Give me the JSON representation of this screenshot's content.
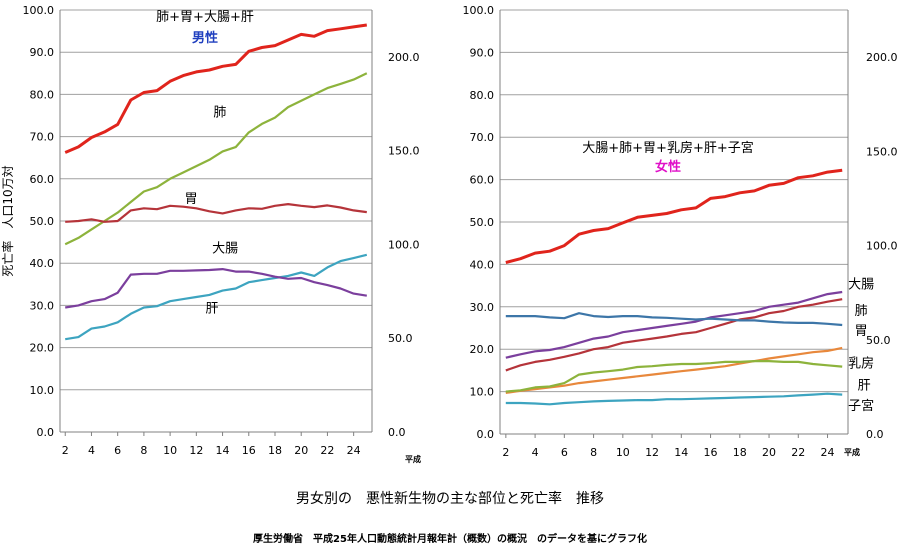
{
  "caption": "男女別の　悪性新生物の主な部位と死亡率　推移",
  "source": "厚生労働省　平成25年人口動態統計月報年計（概数）の概況　のデータを基にグラフ化",
  "chart_data": [
    {
      "type": "line",
      "title": "男性",
      "annotation": "肺+胃+大腸+肝",
      "ylabel": "死亡率　人口10万対",
      "xlabel": "平成",
      "x": [
        2,
        3,
        4,
        5,
        6,
        7,
        8,
        9,
        10,
        11,
        12,
        13,
        14,
        15,
        16,
        17,
        18,
        19,
        20,
        21,
        22,
        23,
        24,
        25
      ],
      "xticks": [
        "2",
        "4",
        "6",
        "8",
        "10",
        "12",
        "14",
        "16",
        "18",
        "20",
        "22",
        "24"
      ],
      "ylim": [
        0,
        100
      ],
      "yticks": [
        "0.0",
        "10.0",
        "20.0",
        "30.0",
        "40.0",
        "50.0",
        "60.0",
        "70.0",
        "80.0",
        "90.0",
        "100.0"
      ],
      "y2lim": [
        0,
        225
      ],
      "y2ticks": [
        "0.0",
        "50.0",
        "100.0",
        "150.0",
        "200.0"
      ],
      "grid": true,
      "series": [
        {
          "name": "肺+胃+大腸+肝",
          "axis": "right",
          "color": "#e0241c",
          "values": [
            149,
            152,
            157,
            160,
            164,
            177,
            181,
            182,
            187,
            190,
            192,
            193,
            195,
            196,
            203,
            205,
            206,
            209,
            212,
            211,
            214,
            215,
            216,
            217
          ]
        },
        {
          "name": "肺",
          "axis": "left",
          "color": "#8db33c",
          "values": [
            44.5,
            46.0,
            48.0,
            50.0,
            52.0,
            54.5,
            57.0,
            58.0,
            60.0,
            61.5,
            63.0,
            64.5,
            66.5,
            67.5,
            71.0,
            73.0,
            74.5,
            77.0,
            78.5,
            80.0,
            81.5,
            82.5,
            83.5,
            85.0
          ]
        },
        {
          "name": "胃",
          "axis": "left",
          "color": "#b5343a",
          "values": [
            49.8,
            50.0,
            50.4,
            49.8,
            50.0,
            52.5,
            53.0,
            52.8,
            53.6,
            53.4,
            53.0,
            52.3,
            51.8,
            52.5,
            53.0,
            52.9,
            53.6,
            54.0,
            53.6,
            53.3,
            53.7,
            53.2,
            52.5,
            52.1
          ]
        },
        {
          "name": "大腸",
          "axis": "left",
          "color": "#3da4c0",
          "values": [
            22.0,
            22.5,
            24.5,
            25.0,
            26.0,
            28.0,
            29.5,
            29.8,
            31.0,
            31.5,
            32.0,
            32.5,
            33.5,
            34.0,
            35.5,
            36.0,
            36.5,
            37.0,
            37.8,
            37.0,
            39.0,
            40.5,
            41.2,
            42.0
          ]
        },
        {
          "name": "肝",
          "axis": "left",
          "color": "#7b3f9d",
          "values": [
            29.5,
            30.0,
            31.0,
            31.5,
            33.0,
            37.3,
            37.5,
            37.5,
            38.2,
            38.2,
            38.3,
            38.4,
            38.6,
            38.0,
            38.0,
            37.5,
            36.8,
            36.3,
            36.5,
            35.5,
            34.8,
            34.0,
            32.8,
            32.3
          ]
        }
      ],
      "labels": [
        {
          "text": "肺",
          "x": 13.8,
          "y": 76.0
        },
        {
          "text": "胃",
          "x": 11.6,
          "y": 55.5
        },
        {
          "text": "大腸",
          "x": 14.2,
          "y": 43.7
        },
        {
          "text": "肝",
          "x": 13.2,
          "y": 29.5
        }
      ]
    },
    {
      "type": "line",
      "title": "女性",
      "annotation": "大腸+肺+胃+乳房+肝+子宮",
      "xlabel": "平成",
      "x": [
        2,
        3,
        4,
        5,
        6,
        7,
        8,
        9,
        10,
        11,
        12,
        13,
        14,
        15,
        16,
        17,
        18,
        19,
        20,
        21,
        22,
        23,
        24,
        25
      ],
      "xticks": [
        "2",
        "4",
        "6",
        "8",
        "10",
        "12",
        "14",
        "16",
        "18",
        "20",
        "22",
        "24"
      ],
      "ylim": [
        0,
        100
      ],
      "yticks": [
        "0.0",
        "10.0",
        "20.0",
        "30.0",
        "40.0",
        "50.0",
        "60.0",
        "70.0",
        "80.0",
        "90.0",
        "100.0"
      ],
      "y2lim": [
        0,
        225
      ],
      "y2ticks": [
        "0.0",
        "50.0",
        "100.0",
        "150.0",
        "200.0"
      ],
      "grid": true,
      "series": [
        {
          "name": "大腸+肺+胃+乳房+肝+子宮",
          "axis": "right",
          "color": "#e0241c",
          "values": [
            91,
            93,
            96,
            97,
            100,
            106,
            108,
            109,
            112,
            115,
            116,
            117,
            119,
            120,
            125,
            126,
            128,
            129,
            132,
            133,
            136,
            137,
            139,
            140
          ]
        },
        {
          "name": "大腸",
          "axis": "left",
          "color": "#7b3f9d",
          "values": [
            18.0,
            18.8,
            19.5,
            19.8,
            20.5,
            21.5,
            22.5,
            23.0,
            24.0,
            24.5,
            25.0,
            25.5,
            26.0,
            26.5,
            27.5,
            28.0,
            28.5,
            29.0,
            30.0,
            30.5,
            31.0,
            32.0,
            33.0,
            33.5
          ]
        },
        {
          "name": "肺",
          "axis": "left",
          "color": "#b5343a",
          "values": [
            15.0,
            16.2,
            17.0,
            17.5,
            18.2,
            19.0,
            20.0,
            20.5,
            21.5,
            22.0,
            22.5,
            23.0,
            23.6,
            24.0,
            25.0,
            26.0,
            27.0,
            27.5,
            28.5,
            29.0,
            30.0,
            30.5,
            31.2,
            31.8
          ]
        },
        {
          "name": "胃",
          "axis": "left",
          "color": "#3d76a8",
          "values": [
            27.8,
            27.8,
            27.8,
            27.5,
            27.3,
            28.5,
            27.8,
            27.6,
            27.8,
            27.8,
            27.5,
            27.4,
            27.2,
            27.0,
            27.2,
            27.0,
            26.8,
            26.8,
            26.5,
            26.3,
            26.2,
            26.2,
            26.0,
            25.7
          ]
        },
        {
          "name": "乳房",
          "axis": "left",
          "color": "#e8883c",
          "values": [
            9.7,
            10.2,
            10.6,
            11.0,
            11.4,
            12.0,
            12.4,
            12.8,
            13.2,
            13.6,
            14.0,
            14.4,
            14.8,
            15.2,
            15.6,
            16.0,
            16.6,
            17.2,
            17.8,
            18.3,
            18.8,
            19.3,
            19.6,
            20.3
          ]
        },
        {
          "name": "肝",
          "axis": "left",
          "color": "#8db33c",
          "values": [
            10.0,
            10.3,
            11.0,
            11.2,
            12.0,
            14.0,
            14.5,
            14.8,
            15.2,
            15.8,
            16.0,
            16.3,
            16.5,
            16.5,
            16.7,
            17.0,
            17.0,
            17.2,
            17.2,
            17.0,
            17.0,
            16.5,
            16.2,
            15.9
          ]
        },
        {
          "name": "子宮",
          "axis": "left",
          "color": "#3da4c0",
          "values": [
            7.3,
            7.3,
            7.2,
            7.0,
            7.3,
            7.5,
            7.7,
            7.8,
            7.9,
            8.0,
            8.0,
            8.2,
            8.2,
            8.3,
            8.4,
            8.5,
            8.6,
            8.7,
            8.8,
            8.9,
            9.1,
            9.3,
            9.5,
            9.3
          ]
        }
      ],
      "labels": [
        {
          "text": "大腸",
          "x": 26.3,
          "y": 35.5
        },
        {
          "text": "肺",
          "x": 26.3,
          "y": 29.3
        },
        {
          "text": "胃",
          "x": 26.3,
          "y": 24.5
        },
        {
          "text": "乳房",
          "x": 26.3,
          "y": 16.9
        },
        {
          "text": "肝",
          "x": 26.5,
          "y": 11.7
        },
        {
          "text": "子宮",
          "x": 26.3,
          "y": 6.8
        }
      ]
    }
  ]
}
